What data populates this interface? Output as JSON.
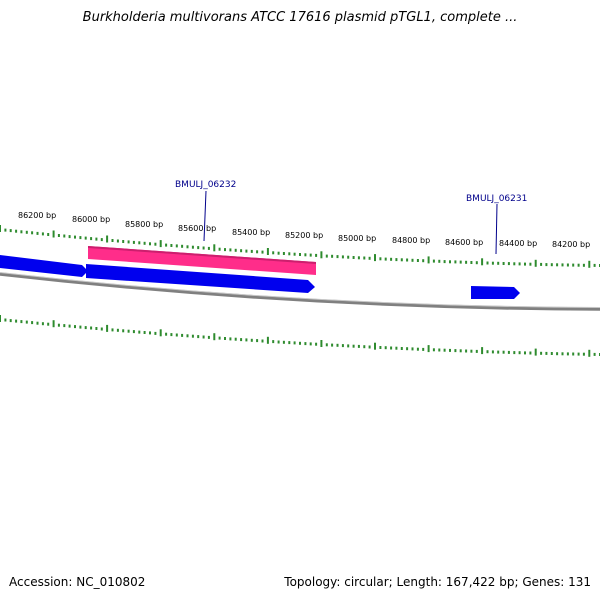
{
  "title": "Burkholderia multivorans ATCC 17616 plasmid pTGL1, complete ...",
  "footer": {
    "accession": "Accession: NC_010802",
    "summary": "Topology: circular; Length: 167,422 bp; Genes: 131"
  },
  "colors": {
    "forward_gene": "#0000ee",
    "highlight_gene": "#ff2d8a",
    "tick": "#2e8b2e",
    "backbone": "#808080",
    "gene_label": "#00008b"
  },
  "chart_data": {
    "type": "genome_map",
    "topology": "circular",
    "ticks_bp": [
      86200,
      86000,
      85800,
      85600,
      85400,
      85200,
      85000,
      84800,
      84600,
      84400,
      84200
    ],
    "tick_labels": [
      "86200 bp",
      "86000 bp",
      "85800 bp",
      "85600 bp",
      "85400 bp",
      "85200 bp",
      "85000 bp",
      "84800 bp",
      "84600 bp",
      "84400 bp",
      "84200 bp"
    ],
    "gene_labels": [
      {
        "name": "BMULJ_06232"
      },
      {
        "name": "BMULJ_06231"
      }
    ]
  }
}
